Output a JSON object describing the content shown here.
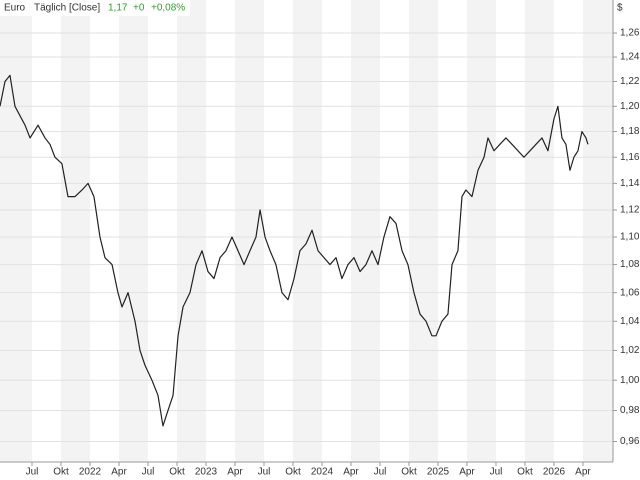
{
  "chart_data": {
    "type": "line",
    "title": "Euro",
    "subtitle": "Täglich [Close]",
    "quote": {
      "last": "1,17",
      "change": "+0",
      "change_pct": "+0,08%",
      "color": "#2e9e2e"
    },
    "currency": "$",
    "log_scale": true,
    "grid": true,
    "xlim": [
      2021.224,
      2026.509
    ],
    "ylim": [
      0.947,
      1.288
    ],
    "xticks": [
      {
        "value": 2021.5,
        "label": "Jul"
      },
      {
        "value": 2021.75,
        "label": "Okt"
      },
      {
        "value": 2022,
        "label": "2022"
      },
      {
        "value": 2022.25,
        "label": "Apr"
      },
      {
        "value": 2022.5,
        "label": "Jul"
      },
      {
        "value": 2022.75,
        "label": "Okt"
      },
      {
        "value": 2023,
        "label": "2023"
      },
      {
        "value": 2023.25,
        "label": "Apr"
      },
      {
        "value": 2023.5,
        "label": "Jul"
      },
      {
        "value": 2023.75,
        "label": "Okt"
      },
      {
        "value": 2024,
        "label": "2024"
      },
      {
        "value": 2024.25,
        "label": "Apr"
      },
      {
        "value": 2024.5,
        "label": "Jul"
      },
      {
        "value": 2024.75,
        "label": "Okt"
      },
      {
        "value": 2025,
        "label": "2025"
      },
      {
        "value": 2025.25,
        "label": "Apr"
      },
      {
        "value": 2025.5,
        "label": "Jul"
      },
      {
        "value": 2025.75,
        "label": "Okt"
      },
      {
        "value": 2026,
        "label": "2026"
      },
      {
        "value": 2026.25,
        "label": "Apr"
      }
    ],
    "yticks": [
      {
        "value": 0.96,
        "label": "0,96"
      },
      {
        "value": 0.98,
        "label": "0,98"
      },
      {
        "value": 1.0,
        "label": "1,00"
      },
      {
        "value": 1.02,
        "label": "1,02"
      },
      {
        "value": 1.04,
        "label": "1,04"
      },
      {
        "value": 1.06,
        "label": "1,06"
      },
      {
        "value": 1.08,
        "label": "1,08"
      },
      {
        "value": 1.1,
        "label": "1,10"
      },
      {
        "value": 1.12,
        "label": "1,12"
      },
      {
        "value": 1.14,
        "label": "1,14"
      },
      {
        "value": 1.16,
        "label": "1,16"
      },
      {
        "value": 1.18,
        "label": "1,18"
      },
      {
        "value": 1.2,
        "label": "1,20"
      },
      {
        "value": 1.22,
        "label": "1,22"
      },
      {
        "value": 1.24,
        "label": "1,24"
      },
      {
        "value": 1.26,
        "label": "1,26"
      }
    ],
    "x": [
      2021.224,
      2021.267,
      2021.31,
      2021.353,
      2021.44,
      2021.483,
      2021.552,
      2021.612,
      2021.655,
      2021.698,
      2021.758,
      2021.81,
      2021.871,
      2021.931,
      2021.983,
      2022.034,
      2022.086,
      2022.129,
      2022.19,
      2022.241,
      2022.276,
      2022.328,
      2022.388,
      2022.431,
      2022.474,
      2022.534,
      2022.586,
      2022.629,
      2022.672,
      2022.716,
      2022.759,
      2022.802,
      2022.862,
      2022.914,
      2022.966,
      2023.017,
      2023.069,
      2023.121,
      2023.172,
      2023.224,
      2023.276,
      2023.328,
      2023.379,
      2023.431,
      2023.466,
      2023.509,
      2023.552,
      2023.603,
      2023.655,
      2023.707,
      2023.759,
      2023.81,
      2023.862,
      2023.914,
      2023.966,
      2024.017,
      2024.069,
      2024.121,
      2024.172,
      2024.224,
      2024.276,
      2024.328,
      2024.379,
      2024.431,
      2024.483,
      2024.534,
      2024.586,
      2024.638,
      2024.69,
      2024.741,
      2024.793,
      2024.845,
      2024.897,
      2024.948,
      2024.983,
      2025.034,
      2025.086,
      2025.121,
      2025.172,
      2025.207,
      2025.241,
      2025.293,
      2025.345,
      2025.397,
      2025.431,
      2025.483,
      2025.534,
      2025.586,
      2025.638,
      2025.69,
      2025.741,
      2025.793,
      2025.845,
      2025.897,
      2025.948,
      2026.0,
      2026.034,
      2026.069,
      2026.103,
      2026.138,
      2026.172,
      2026.207,
      2026.241,
      2026.276,
      2026.293
    ],
    "series": [
      {
        "name": "Euro",
        "color": "#222222",
        "values": [
          1.2,
          1.22,
          1.225,
          1.2,
          1.185,
          1.175,
          1.185,
          1.175,
          1.17,
          1.16,
          1.155,
          1.13,
          1.13,
          1.135,
          1.14,
          1.13,
          1.1,
          1.085,
          1.08,
          1.06,
          1.05,
          1.06,
          1.04,
          1.02,
          1.01,
          1.0,
          0.99,
          0.97,
          0.98,
          0.99,
          1.03,
          1.05,
          1.06,
          1.08,
          1.09,
          1.075,
          1.07,
          1.085,
          1.09,
          1.1,
          1.09,
          1.08,
          1.09,
          1.1,
          1.12,
          1.1,
          1.09,
          1.08,
          1.06,
          1.055,
          1.07,
          1.09,
          1.095,
          1.105,
          1.09,
          1.085,
          1.08,
          1.085,
          1.07,
          1.08,
          1.085,
          1.075,
          1.08,
          1.09,
          1.08,
          1.1,
          1.115,
          1.11,
          1.09,
          1.08,
          1.06,
          1.045,
          1.04,
          1.03,
          1.03,
          1.04,
          1.045,
          1.08,
          1.09,
          1.13,
          1.135,
          1.13,
          1.15,
          1.16,
          1.175,
          1.165,
          1.17,
          1.175,
          1.17,
          1.165,
          1.16,
          1.165,
          1.17,
          1.175,
          1.165,
          1.19,
          1.2,
          1.175,
          1.17,
          1.15,
          1.16,
          1.165,
          1.18,
          1.175,
          1.17
        ]
      }
    ]
  }
}
